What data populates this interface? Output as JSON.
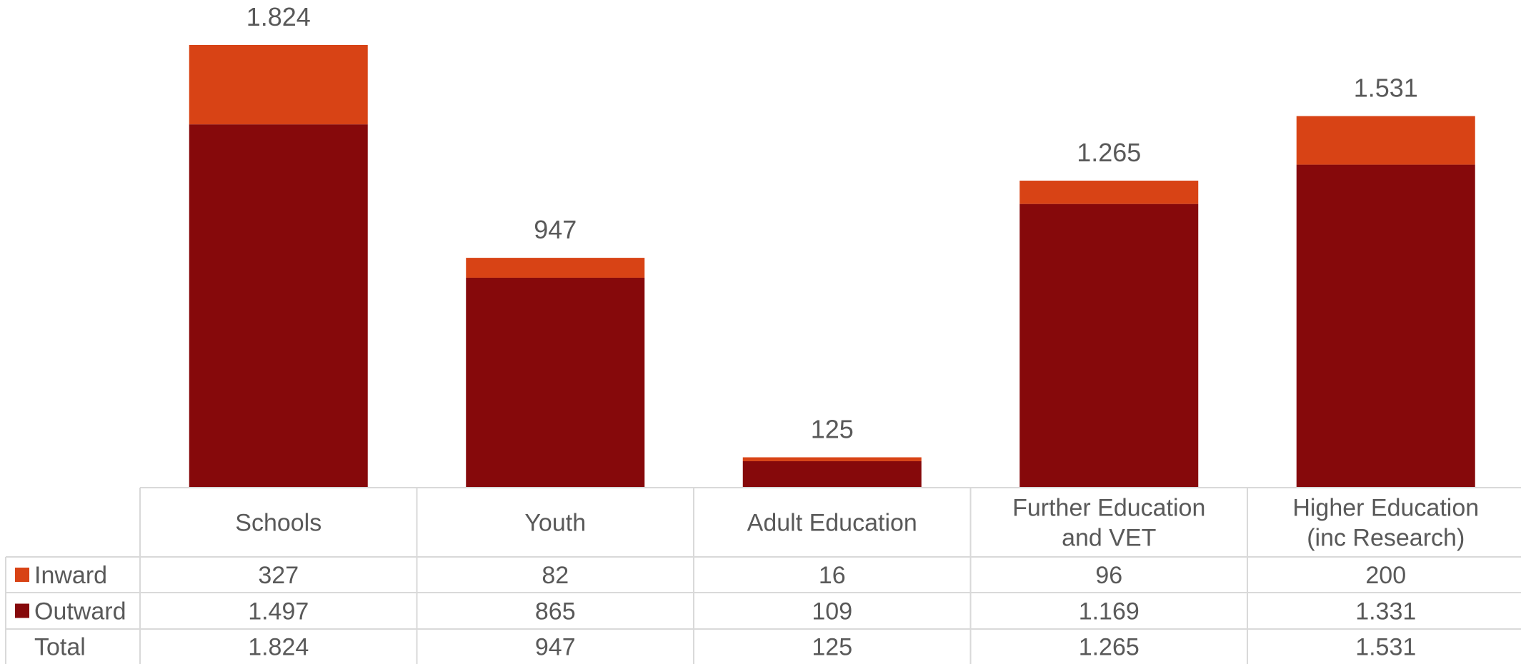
{
  "chart_data": {
    "type": "bar",
    "stacked": true,
    "categories": [
      [
        "Schools"
      ],
      [
        "Youth"
      ],
      [
        "Adult Education"
      ],
      [
        "Further Education",
        "and VET"
      ],
      [
        "Higher Education",
        "(inc Research)"
      ]
    ],
    "series": [
      {
        "name": "Inward",
        "color": "#d84315",
        "values": [
          327,
          82,
          16,
          96,
          200
        ],
        "labels": [
          "327",
          "82",
          "16",
          "96",
          "200"
        ]
      },
      {
        "name": "Outward",
        "color": "#86090b",
        "values": [
          1497,
          865,
          109,
          1169,
          1331
        ],
        "labels": [
          "1.497",
          "865",
          "109",
          "1.169",
          "1.331"
        ]
      }
    ],
    "totals": {
      "name": "Total",
      "values": [
        1824,
        947,
        125,
        1265,
        1531
      ],
      "labels": [
        "1.824",
        "947",
        "125",
        "1.265",
        "1.531"
      ]
    },
    "ylim": [
      0,
      1824
    ],
    "data_table": true,
    "legend": "in-table",
    "grid": false
  }
}
